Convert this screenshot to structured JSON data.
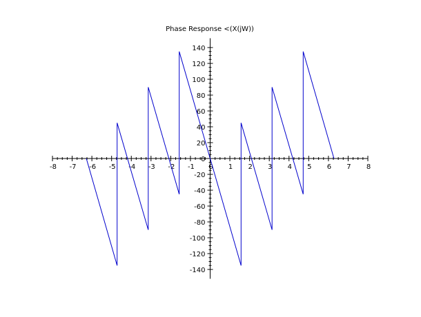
{
  "chart_data": {
    "type": "line",
    "title": "Phase Response <(X(jW))",
    "xlabel": "",
    "ylabel": "",
    "xlim": [
      -8,
      8
    ],
    "ylim": [
      -150,
      150
    ],
    "x_ticks": [
      -8,
      -7,
      -6,
      -5,
      -4,
      -3,
      -2,
      -1,
      0,
      1,
      2,
      3,
      4,
      5,
      6,
      7,
      8
    ],
    "x_tick_labels": [
      "-8",
      "-7",
      "-6",
      "-5",
      "-4",
      "-3",
      "-2",
      "-1",
      "0",
      "1",
      "2",
      "3",
      "4",
      "5",
      "6",
      "7",
      "8"
    ],
    "y_ticks": [
      -140,
      -120,
      -100,
      -80,
      -60,
      -40,
      -20,
      0,
      20,
      40,
      60,
      80,
      100,
      120,
      140
    ],
    "y_tick_labels": [
      "-140",
      "-120",
      "-100",
      "-80",
      "-60",
      "-40",
      "-20",
      "0",
      "20",
      "40",
      "60",
      "80",
      "100",
      "120",
      "140"
    ],
    "grid": false,
    "axes_through_origin": true,
    "line_color": "#0000cc",
    "series": [
      {
        "x": [
          -6.28,
          -4.72,
          -4.72,
          -3.14,
          -3.14,
          -1.57,
          -1.57,
          0,
          1.57,
          1.57,
          3.14,
          3.14,
          4.72,
          4.72,
          6.28
        ],
        "y": [
          0,
          -135,
          45,
          -90,
          90,
          -45,
          135,
          0,
          -135,
          45,
          -90,
          90,
          -45,
          135,
          0
        ]
      }
    ]
  }
}
